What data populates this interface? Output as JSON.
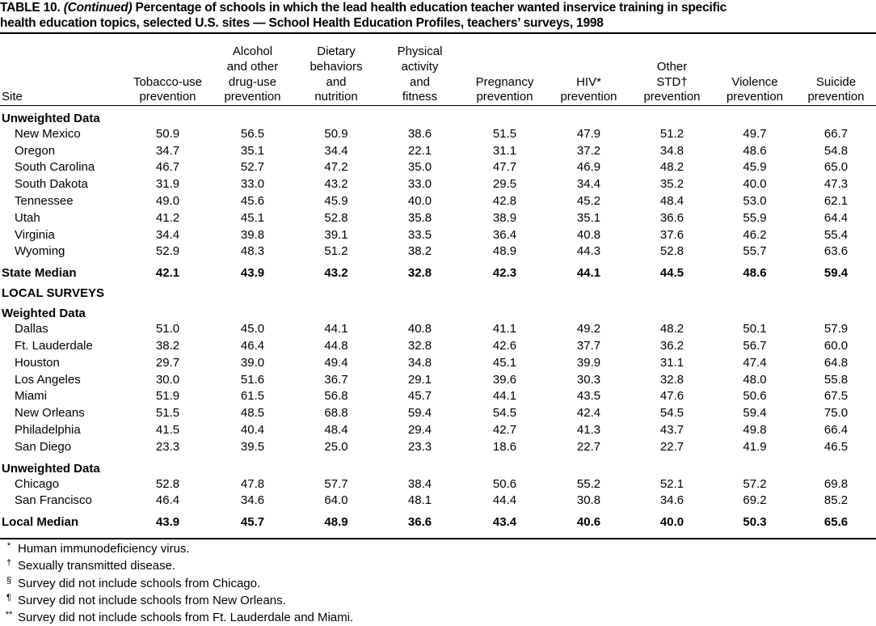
{
  "title": {
    "label": "TABLE 10.",
    "note": "(Continued)",
    "lines": [
      "Percentage of schools in which the lead health education teacher wanted inservice training in specific",
      "health education topics, selected U.S. sites — School Health Education Profiles, teachers’ surveys, 1998"
    ]
  },
  "table": {
    "site_header": "Site",
    "columns": [
      [
        "Tobacco-use",
        "prevention"
      ],
      [
        "Alcohol",
        "and other",
        "drug-use",
        "prevention"
      ],
      [
        "Dietary",
        "behaviors",
        "and",
        "nutrition"
      ],
      [
        "Physical",
        "activity",
        "and",
        "fitness"
      ],
      [
        "Pregnancy",
        "prevention"
      ],
      [
        "HIV*",
        "prevention"
      ],
      [
        "Other",
        "STD†",
        "prevention"
      ],
      [
        "Violence",
        "prevention"
      ],
      [
        "Suicide",
        "prevention"
      ]
    ],
    "body": [
      {
        "heading": "Unweighted Data"
      },
      {
        "site": "New Mexico",
        "values": [
          "50.9",
          "56.5",
          "50.9",
          "38.6",
          "51.5",
          "47.9",
          "51.2",
          "49.7",
          "66.7"
        ]
      },
      {
        "site": "Oregon",
        "values": [
          "34.7",
          "35.1",
          "34.4",
          "22.1",
          "31.1",
          "37.2",
          "34.8",
          "48.6",
          "54.8"
        ]
      },
      {
        "site": "South Carolina",
        "values": [
          "46.7",
          "52.7",
          "47.2",
          "35.0",
          "47.7",
          "46.9",
          "48.2",
          "45.9",
          "65.0"
        ]
      },
      {
        "site": "South Dakota",
        "values": [
          "31.9",
          "33.0",
          "43.2",
          "33.0",
          "29.5",
          "34.4",
          "35.2",
          "40.0",
          "47.3"
        ]
      },
      {
        "site": "Tennessee",
        "values": [
          "49.0",
          "45.6",
          "45.9",
          "40.0",
          "42.8",
          "45.2",
          "48.4",
          "53.0",
          "62.1"
        ]
      },
      {
        "site": "Utah",
        "values": [
          "41.2",
          "45.1",
          "52.8",
          "35.8",
          "38.9",
          "35.1",
          "36.6",
          "55.9",
          "64.4"
        ]
      },
      {
        "site": "Virginia",
        "values": [
          "34.4",
          "39.8",
          "39.1",
          "33.5",
          "36.4",
          "40.8",
          "37.6",
          "46.2",
          "55.4"
        ]
      },
      {
        "site": "Wyoming",
        "values": [
          "52.9",
          "48.3",
          "51.2",
          "38.2",
          "48.9",
          "44.3",
          "52.8",
          "55.7",
          "63.6"
        ]
      },
      {
        "median": "State Median",
        "values": [
          "42.1",
          "43.9",
          "43.2",
          "32.8",
          "42.3",
          "44.1",
          "44.5",
          "48.6",
          "59.4"
        ]
      },
      {
        "heading": "LOCAL SURVEYS"
      },
      {
        "heading": "Weighted Data"
      },
      {
        "site": "Dallas",
        "values": [
          "51.0",
          "45.0",
          "44.1",
          "40.8",
          "41.1",
          "49.2",
          "48.2",
          "50.1",
          "57.9"
        ]
      },
      {
        "site": "Ft. Lauderdale",
        "values": [
          "38.2",
          "46.4",
          "44.8",
          "32.8",
          "42.6",
          "37.7",
          "36.2",
          "56.7",
          "60.0"
        ]
      },
      {
        "site": "Houston",
        "values": [
          "29.7",
          "39.0",
          "49.4",
          "34.8",
          "45.1",
          "39.9",
          "31.1",
          "47.4",
          "64.8"
        ]
      },
      {
        "site": "Los Angeles",
        "values": [
          "30.0",
          "51.6",
          "36.7",
          "29.1",
          "39.6",
          "30.3",
          "32.8",
          "48.0",
          "55.8"
        ]
      },
      {
        "site": "Miami",
        "values": [
          "51.9",
          "61.5",
          "56.8",
          "45.7",
          "44.1",
          "43.5",
          "47.6",
          "50.6",
          "67.5"
        ]
      },
      {
        "site": "New Orleans",
        "values": [
          "51.5",
          "48.5",
          "68.8",
          "59.4",
          "54.5",
          "42.4",
          "54.5",
          "59.4",
          "75.0"
        ]
      },
      {
        "site": "Philadelphia",
        "values": [
          "41.5",
          "40.4",
          "48.4",
          "29.4",
          "42.7",
          "41.3",
          "43.7",
          "49.8",
          "66.4"
        ]
      },
      {
        "site": "San Diego",
        "values": [
          "23.3",
          "39.5",
          "25.0",
          "23.3",
          "18.6",
          "22.7",
          "22.7",
          "41.9",
          "46.5"
        ]
      },
      {
        "heading": "Unweighted Data"
      },
      {
        "site": "Chicago",
        "values": [
          "52.8",
          "47.8",
          "57.7",
          "38.4",
          "50.6",
          "55.2",
          "52.1",
          "57.2",
          "69.8"
        ]
      },
      {
        "site": "San Francisco",
        "values": [
          "46.4",
          "34.6",
          "64.0",
          "48.1",
          "44.4",
          "30.8",
          "34.6",
          "69.2",
          "85.2"
        ]
      },
      {
        "median": "Local Median",
        "values": [
          "43.9",
          "45.7",
          "48.9",
          "36.6",
          "43.4",
          "40.6",
          "40.0",
          "50.3",
          "65.6"
        ]
      }
    ]
  },
  "footnotes": [
    {
      "mark": "*",
      "text": "Human immunodeficiency virus."
    },
    {
      "mark": "†",
      "text": "Sexually transmitted disease."
    },
    {
      "mark": "§",
      "text": "Survey did not include schools from Chicago."
    },
    {
      "mark": "¶",
      "text": "Survey did not include schools from New Orleans."
    },
    {
      "mark": "**",
      "text": "Survey did not include schools from Ft. Lauderdale and Miami."
    }
  ]
}
